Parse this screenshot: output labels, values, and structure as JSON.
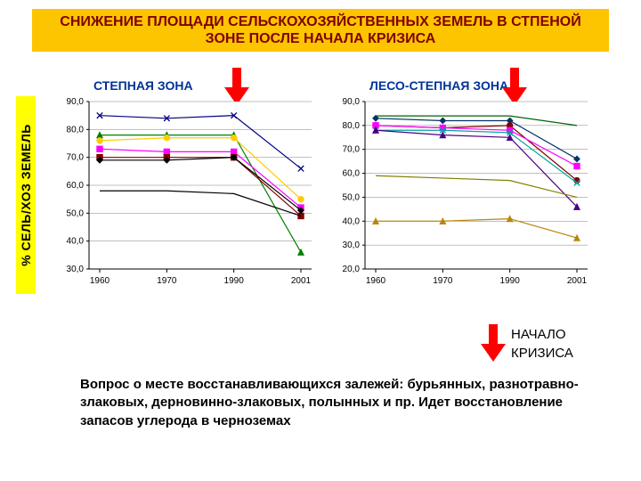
{
  "banner": "СНИЖЕНИЕ ПЛОЩАДИ СЕЛЬСКОХОЗЯЙСТВЕННЫХ ЗЕМЕЛЬ В СТПЕНОЙ ЗОНЕ ПОСЛЕ НАЧАЛА КРИЗИСА",
  "y_axis_label": "% СЕЛЬ/ХОЗ ЗЕМЕЛЬ",
  "subtitle_left": "СТЕПНАЯ ЗОНА",
  "subtitle_right": "ЛЕСО-СТЕПНАЯ ЗОНА",
  "crisis_label_line1": "НАЧАЛО",
  "crisis_label_line2": "КРИЗИСА",
  "footer_text": "Вопрос о месте восстанавливающихся залежей: бурьянных, разнотравно-злаковых, дерновинно-злаковых, полынных и пр. Идет восстановление запасов углерода в черноземах",
  "arrow_color": "#ff0000",
  "chart_common": {
    "x_ticks": [
      "1960",
      "1970",
      "1990",
      "2001"
    ],
    "axis_color": "#000000",
    "grid_color": "#808080",
    "background_color": "#ffffff",
    "tick_fontsize": 10,
    "series_line_width": 1.2
  },
  "chart_left": {
    "ylim": [
      30,
      90
    ],
    "ytick_step": 10,
    "series": [
      {
        "color": "#000080",
        "marker": "x",
        "values": [
          85,
          84,
          85,
          66
        ]
      },
      {
        "color": "#008000",
        "marker": "triangle",
        "values": [
          78,
          78,
          78,
          36
        ]
      },
      {
        "color": "#ffcc00",
        "marker": "circle",
        "values": [
          76,
          77,
          77,
          55
        ]
      },
      {
        "color": "#ff00ff",
        "marker": "square",
        "values": [
          73,
          72,
          72,
          52
        ]
      },
      {
        "color": "#800000",
        "marker": "square",
        "values": [
          70,
          70,
          70,
          49
        ]
      },
      {
        "color": "#000000",
        "marker": "diamond",
        "values": [
          69,
          69,
          70,
          51
        ]
      },
      {
        "color": "#000000",
        "marker": "none",
        "values": [
          58,
          58,
          57,
          49
        ]
      }
    ]
  },
  "chart_right": {
    "ylim": [
      20,
      90
    ],
    "ytick_step": 10,
    "series": [
      {
        "color": "#006400",
        "marker": "none",
        "values": [
          84,
          84,
          84,
          80
        ]
      },
      {
        "color": "#003366",
        "marker": "diamond",
        "values": [
          83,
          82,
          82,
          66
        ]
      },
      {
        "color": "#800000",
        "marker": "circle",
        "values": [
          80,
          79,
          80,
          57
        ]
      },
      {
        "color": "#ff00ff",
        "marker": "square",
        "values": [
          80,
          79,
          78,
          63
        ]
      },
      {
        "color": "#00a0a0",
        "marker": "x",
        "values": [
          78,
          78,
          77,
          56
        ]
      },
      {
        "color": "#4b0082",
        "marker": "triangle",
        "values": [
          78,
          76,
          75,
          46
        ]
      },
      {
        "color": "#b8860b",
        "marker": "triangle",
        "values": [
          40,
          40,
          41,
          33
        ]
      },
      {
        "color": "#808000",
        "marker": "none",
        "values": [
          59,
          58,
          57,
          50
        ]
      }
    ]
  }
}
